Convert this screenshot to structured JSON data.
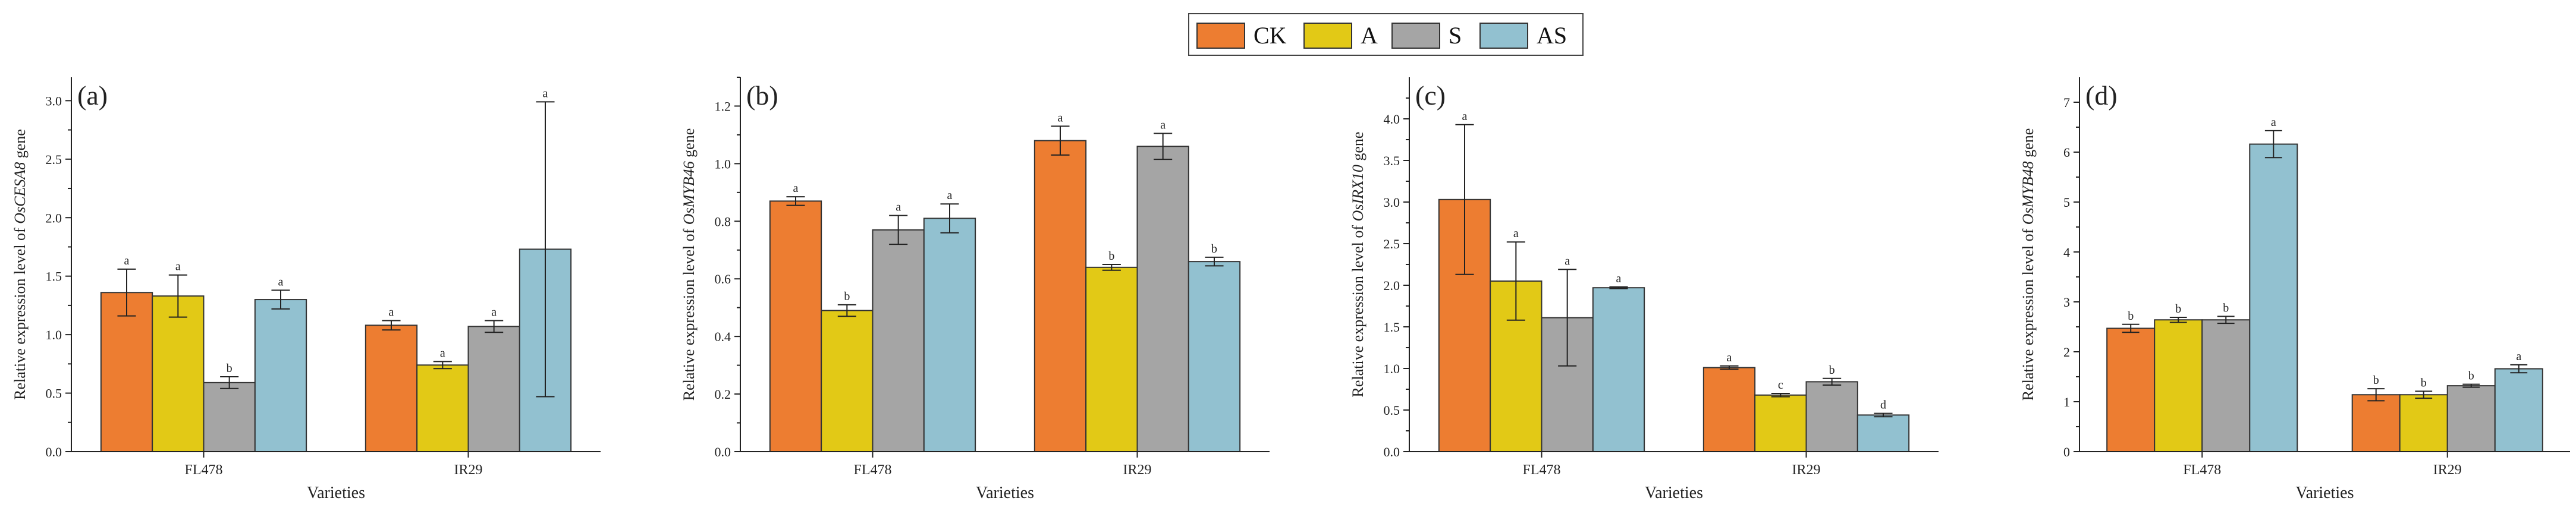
{
  "legend": {
    "items": [
      {
        "label": "CK",
        "color": "#ed7d31"
      },
      {
        "label": "A",
        "color": "#e2c916"
      },
      {
        "label": "S",
        "color": "#a5a5a5"
      },
      {
        "label": "AS",
        "color": "#92c1d0"
      }
    ]
  },
  "chart_data": [
    {
      "type": "bar",
      "panel_label": "(a)",
      "title": "",
      "xlabel": "Varieties",
      "ylabel_prefix": "Relative expression level of ",
      "ylabel_gene": "OsCESA8",
      "ylabel_suffix": " gene",
      "categories": [
        "FL478",
        "IR29"
      ],
      "ylim": [
        0,
        3.2
      ],
      "yticks": [
        "0.0",
        "0.5",
        "1.0",
        "1.5",
        "2.0",
        "2.5",
        "3.0"
      ],
      "series": [
        {
          "name": "CK",
          "values": [
            1.36,
            1.08
          ],
          "errors": [
            0.2,
            0.04
          ],
          "letters": [
            "a",
            "a"
          ]
        },
        {
          "name": "A",
          "values": [
            1.33,
            0.74
          ],
          "errors": [
            0.18,
            0.03
          ],
          "letters": [
            "a",
            "a"
          ]
        },
        {
          "name": "S",
          "values": [
            0.59,
            1.07
          ],
          "errors": [
            0.05,
            0.05
          ],
          "letters": [
            "b",
            "a"
          ]
        },
        {
          "name": "AS",
          "values": [
            1.3,
            1.73
          ],
          "errors": [
            0.08,
            1.26
          ],
          "letters": [
            "a",
            "a"
          ]
        }
      ]
    },
    {
      "type": "bar",
      "panel_label": "(b)",
      "title": "",
      "xlabel": "Varieties",
      "ylabel_prefix": "Relative expression level of ",
      "ylabel_gene": "OsMYB46",
      "ylabel_suffix": " gene",
      "categories": [
        "FL478",
        "IR29"
      ],
      "ylim": [
        0,
        1.3
      ],
      "yticks": [
        "0.0",
        "0.2",
        "0.4",
        "0.6",
        "0.8",
        "1.0",
        "1.2"
      ],
      "series": [
        {
          "name": "CK",
          "values": [
            0.87,
            1.08
          ],
          "errors": [
            0.015,
            0.05
          ],
          "letters": [
            "a",
            "a"
          ]
        },
        {
          "name": "A",
          "values": [
            0.49,
            0.64
          ],
          "errors": [
            0.02,
            0.01
          ],
          "letters": [
            "b",
            "b"
          ]
        },
        {
          "name": "S",
          "values": [
            0.77,
            1.06
          ],
          "errors": [
            0.05,
            0.045
          ],
          "letters": [
            "a",
            "a"
          ]
        },
        {
          "name": "AS",
          "values": [
            0.81,
            0.66
          ],
          "errors": [
            0.05,
            0.015
          ],
          "letters": [
            "a",
            "b"
          ]
        }
      ]
    },
    {
      "type": "bar",
      "panel_label": "(c)",
      "title": "",
      "xlabel": "Varieties",
      "ylabel_prefix": "Relative expression level of ",
      "ylabel_gene": "OsIRX10",
      "ylabel_suffix": " gene",
      "categories": [
        "FL478",
        "IR29"
      ],
      "ylim": [
        0,
        4.5
      ],
      "yticks": [
        "0.0",
        "0.5",
        "1.0",
        "1.5",
        "2.0",
        "2.5",
        "3.0",
        "3.5",
        "4.0"
      ],
      "series": [
        {
          "name": "CK",
          "values": [
            3.03,
            1.01
          ],
          "errors": [
            0.9,
            0.02
          ],
          "letters": [
            "a",
            "a"
          ]
        },
        {
          "name": "A",
          "values": [
            2.05,
            0.68
          ],
          "errors": [
            0.47,
            0.02
          ],
          "letters": [
            "a",
            "c"
          ]
        },
        {
          "name": "S",
          "values": [
            1.61,
            0.84
          ],
          "errors": [
            0.58,
            0.04
          ],
          "letters": [
            "a",
            "b"
          ]
        },
        {
          "name": "AS",
          "values": [
            1.97,
            0.44
          ],
          "errors": [
            0.01,
            0.02
          ],
          "letters": [
            "a",
            "d"
          ]
        }
      ]
    },
    {
      "type": "bar",
      "panel_label": "(d)",
      "title": "",
      "xlabel": "Varieties",
      "ylabel_prefix": "Relative expression level of ",
      "ylabel_gene": "OsMYB48",
      "ylabel_suffix": " gene",
      "categories": [
        "FL478",
        "IR29"
      ],
      "ylim": [
        0,
        7.5
      ],
      "yticks": [
        "0",
        "1",
        "2",
        "3",
        "4",
        "5",
        "6",
        "7"
      ],
      "series": [
        {
          "name": "CK",
          "values": [
            2.47,
            1.14
          ],
          "errors": [
            0.08,
            0.12
          ],
          "letters": [
            "b",
            "b"
          ]
        },
        {
          "name": "A",
          "values": [
            2.64,
            1.14
          ],
          "errors": [
            0.05,
            0.07
          ],
          "letters": [
            "b",
            "b"
          ]
        },
        {
          "name": "S",
          "values": [
            2.64,
            1.32
          ],
          "errors": [
            0.07,
            0.03
          ],
          "letters": [
            "b",
            "b"
          ]
        },
        {
          "name": "AS",
          "values": [
            6.16,
            1.66
          ],
          "errors": [
            0.27,
            0.08
          ],
          "letters": [
            "a",
            "a"
          ]
        }
      ]
    }
  ]
}
